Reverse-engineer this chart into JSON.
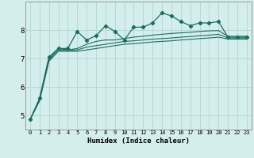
{
  "xlabel": "Humidex (Indice chaleur)",
  "ylabel": "",
  "bg_color": "#d4eeed",
  "grid_color": "#b8d8d4",
  "line_color": "#1a6e5e",
  "x_values": [
    0,
    1,
    2,
    3,
    4,
    5,
    6,
    7,
    8,
    9,
    10,
    11,
    12,
    13,
    14,
    15,
    16,
    17,
    18,
    19,
    20,
    21,
    22,
    23
  ],
  "series": [
    [
      4.85,
      5.6,
      7.05,
      7.35,
      7.35,
      7.95,
      7.65,
      7.8,
      8.15,
      7.95,
      7.65,
      8.1,
      8.1,
      8.25,
      8.6,
      8.5,
      8.3,
      8.15,
      8.25,
      8.25,
      8.3,
      7.75,
      7.75,
      7.75
    ],
    [
      4.85,
      5.55,
      7.0,
      7.35,
      7.3,
      7.35,
      7.5,
      7.6,
      7.65,
      7.65,
      7.7,
      7.75,
      7.78,
      7.82,
      7.85,
      7.88,
      7.9,
      7.92,
      7.95,
      7.97,
      7.98,
      7.78,
      7.78,
      7.78
    ],
    [
      4.85,
      5.55,
      6.95,
      7.3,
      7.28,
      7.3,
      7.4,
      7.45,
      7.5,
      7.55,
      7.6,
      7.62,
      7.65,
      7.68,
      7.7,
      7.72,
      7.75,
      7.77,
      7.8,
      7.82,
      7.85,
      7.72,
      7.72,
      7.72
    ],
    [
      4.85,
      5.5,
      6.9,
      7.25,
      7.25,
      7.25,
      7.3,
      7.35,
      7.4,
      7.45,
      7.5,
      7.52,
      7.55,
      7.58,
      7.6,
      7.62,
      7.65,
      7.67,
      7.7,
      7.72,
      7.75,
      7.68,
      7.68,
      7.68
    ]
  ],
  "ylim": [
    4.5,
    9.0
  ],
  "yticks": [
    5,
    6,
    7,
    8
  ],
  "xlim": [
    -0.5,
    23.5
  ],
  "xticks": [
    0,
    1,
    2,
    3,
    4,
    5,
    6,
    7,
    8,
    9,
    10,
    11,
    12,
    13,
    14,
    15,
    16,
    17,
    18,
    19,
    20,
    21,
    22,
    23
  ]
}
